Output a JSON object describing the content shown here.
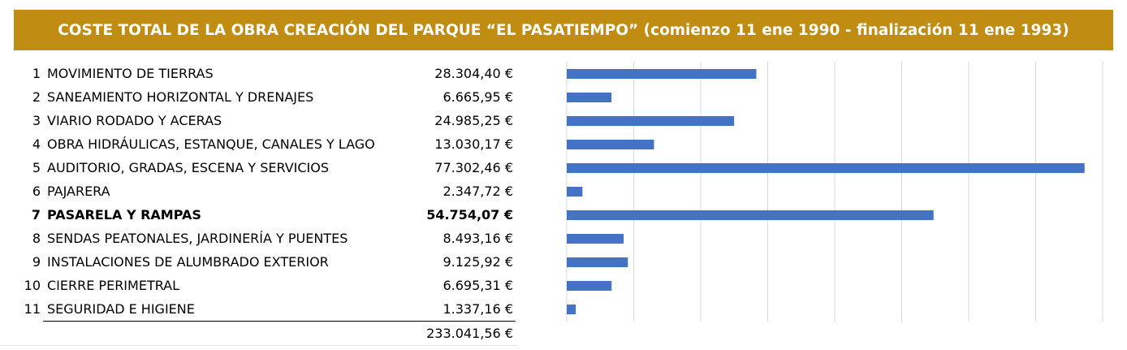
{
  "title": "COSTE TOTAL DE LA OBRA CREACIÓN DEL PARQUE “EL PASATIEMPO” (comienzo 11 ene 1990 - finalización 11 ene 1993)",
  "colors": {
    "title_bg": "#C08C12",
    "bar": "#4472C4",
    "grid": "#D9D9D9"
  },
  "rows": [
    {
      "num": "1",
      "name": "MOVIMIENTO DE TIERRAS",
      "value_label": "28.304,40 €",
      "bold": false
    },
    {
      "num": "2",
      "name": "SANEAMIENTO HORIZONTAL Y DRENAJES",
      "value_label": "6.665,95 €",
      "bold": false
    },
    {
      "num": "3",
      "name": "VIARIO RODADO Y ACERAS",
      "value_label": "24.985,25 €",
      "bold": false
    },
    {
      "num": "4",
      "name": "OBRA HIDRÁULICAS, ESTANQUE, CANALES Y LAGO",
      "value_label": "13.030,17 €",
      "bold": false
    },
    {
      "num": "5",
      "name": "AUDITORIO, GRADAS, ESCENA Y SERVICIOS",
      "value_label": "77.302,46 €",
      "bold": false
    },
    {
      "num": "6",
      "name": "PAJARERA",
      "value_label": "2.347,72 €",
      "bold": false
    },
    {
      "num": "7",
      "name": "PASARELA Y RAMPAS",
      "value_label": "54.754,07 €",
      "bold": true
    },
    {
      "num": "8",
      "name": "SENDAS PEATONALES, JARDINERÍA Y PUENTES",
      "value_label": "8.493,16 €",
      "bold": false
    },
    {
      "num": "9",
      "name": "INSTALACIONES DE ALUMBRADO EXTERIOR",
      "value_label": "9.125,92 €",
      "bold": false
    },
    {
      "num": "10",
      "name": "CIERRE PERIMETRAL",
      "value_label": "6.695,31 €",
      "bold": false
    },
    {
      "num": "11",
      "name": "SEGURIDAD E HIGIENE",
      "value_label": "1.337,16 €",
      "bold": false
    }
  ],
  "total_label": "233.041,56 €",
  "chart_data": {
    "type": "bar",
    "orientation": "horizontal",
    "title": "",
    "categories": [
      "MOVIMIENTO DE TIERRAS",
      "SANEAMIENTO HORIZONTAL Y DRENAJES",
      "VIARIO RODADO Y ACERAS",
      "OBRA HIDRÁULICAS, ESTANQUE, CANALES Y LAGO",
      "AUDITORIO, GRADAS, ESCENA Y SERVICIOS",
      "PAJARERA",
      "PASARELA Y RAMPAS",
      "SENDAS PEATONALES, JARDINERÍA Y PUENTES",
      "INSTALACIONES DE ALUMBRADO EXTERIOR",
      "CIERRE PERIMETRAL",
      "SEGURIDAD E HIGIENE"
    ],
    "values": [
      28304.4,
      6665.95,
      24985.25,
      13030.17,
      77302.46,
      2347.72,
      54754.07,
      8493.16,
      9125.92,
      6695.31,
      1337.16
    ],
    "xlim": [
      0,
      80000
    ],
    "grid_step": 10000,
    "grid": true,
    "xlabel": "",
    "ylabel": ""
  }
}
